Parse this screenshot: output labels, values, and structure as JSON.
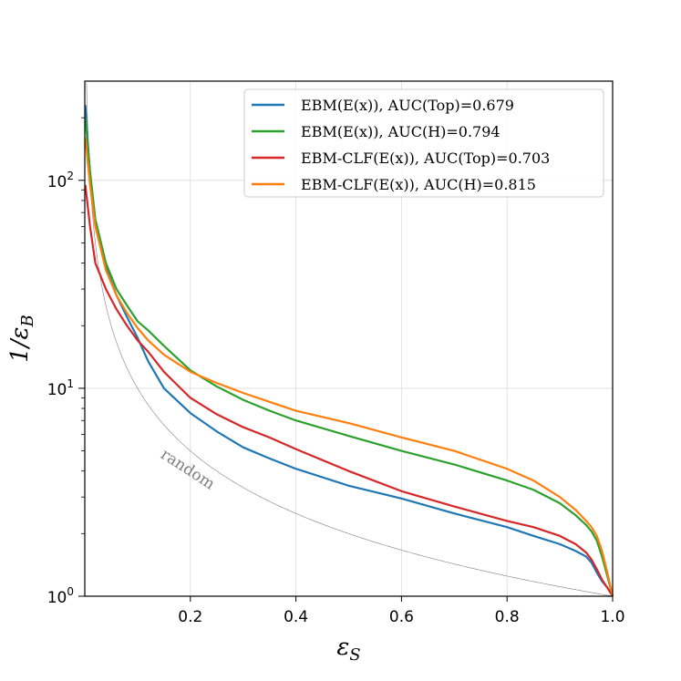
{
  "chart_data": {
    "type": "line",
    "xlabel": "εS",
    "ylabel": "1/εB",
    "xlim": [
      0.0,
      1.0
    ],
    "ylim": [
      1,
      300
    ],
    "y_scale": "log",
    "grid": true,
    "legend_position": "top-right",
    "x_ticks": [
      "0.2",
      "0.4",
      "0.6",
      "0.8",
      "1.0"
    ],
    "y_ticks": [
      "10",
      "10",
      "10"
    ],
    "y_tick_exponents": [
      "0",
      "1",
      "2"
    ],
    "annotations": [
      {
        "text": "random",
        "x": 0.19,
        "y": 3.9,
        "color": "#7f7f7f"
      }
    ],
    "series": [
      {
        "name": "EBM(E(x)), AUC(Top)=0.679",
        "color": "#1f77b4",
        "x": [
          0.001,
          0.01,
          0.02,
          0.04,
          0.06,
          0.08,
          0.1,
          0.12,
          0.15,
          0.2,
          0.25,
          0.3,
          0.35,
          0.4,
          0.5,
          0.6,
          0.7,
          0.8,
          0.85,
          0.9,
          0.93,
          0.95,
          0.96,
          0.97,
          0.98,
          0.99,
          1.0
        ],
        "y": [
          230,
          105,
          62,
          38,
          28,
          22,
          17.5,
          13.5,
          10.0,
          7.6,
          6.2,
          5.2,
          4.6,
          4.1,
          3.4,
          2.95,
          2.5,
          2.15,
          1.95,
          1.78,
          1.65,
          1.55,
          1.45,
          1.3,
          1.18,
          1.1,
          1.0
        ]
      },
      {
        "name": "EBM(E(x)), AUC(H)=0.794",
        "color": "#2ca02c",
        "x": [
          0.001,
          0.01,
          0.02,
          0.04,
          0.06,
          0.08,
          0.1,
          0.12,
          0.15,
          0.2,
          0.25,
          0.3,
          0.35,
          0.4,
          0.5,
          0.6,
          0.7,
          0.8,
          0.85,
          0.9,
          0.93,
          0.95,
          0.96,
          0.97,
          0.98,
          0.99,
          1.0
        ],
        "y": [
          200,
          110,
          65,
          40,
          30,
          25,
          21,
          19,
          16,
          12.2,
          10.2,
          8.8,
          7.8,
          7.0,
          5.9,
          5.0,
          4.3,
          3.6,
          3.25,
          2.8,
          2.45,
          2.2,
          2.05,
          1.85,
          1.55,
          1.25,
          1.0
        ]
      },
      {
        "name": "EBM-CLF(E(x)), AUC(Top)=0.703",
        "color": "#d62728",
        "x": [
          0.001,
          0.01,
          0.02,
          0.04,
          0.06,
          0.08,
          0.1,
          0.12,
          0.15,
          0.2,
          0.25,
          0.3,
          0.35,
          0.4,
          0.5,
          0.6,
          0.7,
          0.8,
          0.85,
          0.9,
          0.93,
          0.95,
          0.96,
          0.97,
          0.98,
          0.99,
          1.0
        ],
        "y": [
          95,
          60,
          40,
          30,
          24,
          20,
          17,
          15,
          12,
          9.0,
          7.5,
          6.5,
          5.8,
          5.1,
          4.0,
          3.2,
          2.7,
          2.3,
          2.15,
          1.95,
          1.78,
          1.62,
          1.5,
          1.35,
          1.2,
          1.1,
          1.0
        ]
      },
      {
        "name": "EBM-CLF(E(x)), AUC(H)=0.815",
        "color": "#ff7f0e",
        "x": [
          0.001,
          0.01,
          0.02,
          0.04,
          0.06,
          0.08,
          0.1,
          0.12,
          0.15,
          0.2,
          0.25,
          0.3,
          0.35,
          0.4,
          0.5,
          0.6,
          0.7,
          0.8,
          0.85,
          0.9,
          0.93,
          0.95,
          0.96,
          0.97,
          0.98,
          0.99,
          1.0
        ],
        "y": [
          160,
          95,
          60,
          37,
          28,
          23,
          19.5,
          17,
          14.5,
          12.0,
          10.6,
          9.5,
          8.6,
          7.8,
          6.8,
          5.8,
          5.0,
          4.1,
          3.6,
          3.0,
          2.6,
          2.3,
          2.15,
          1.95,
          1.65,
          1.3,
          1.0
        ]
      }
    ],
    "reference_curve": {
      "label": "random",
      "color": "#808080",
      "formula": "y = 1/x"
    }
  }
}
